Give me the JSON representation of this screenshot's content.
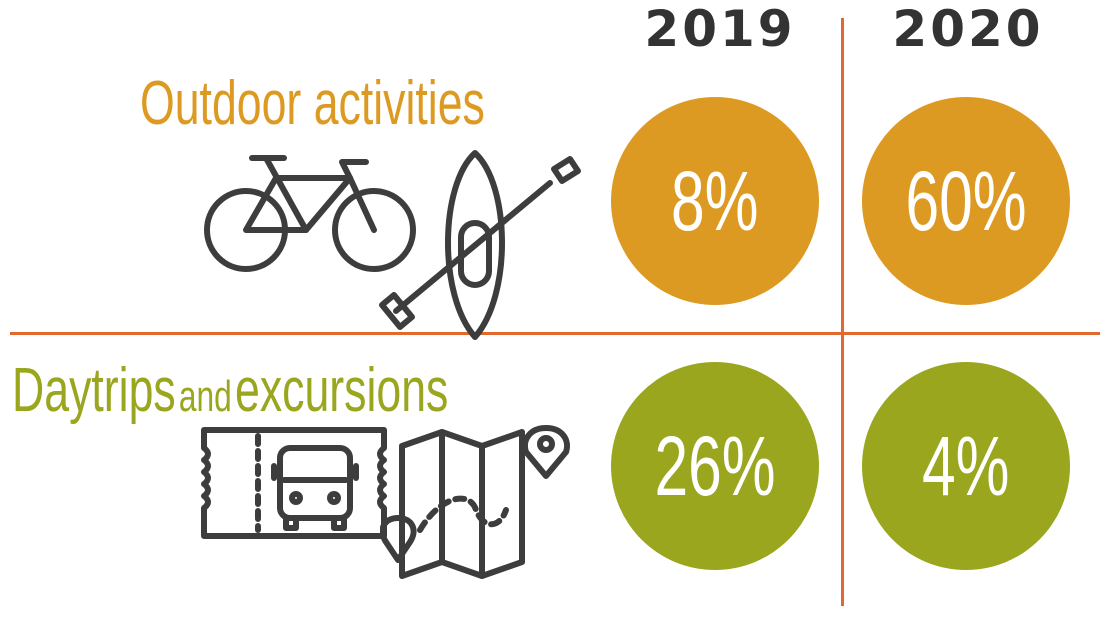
{
  "header": {
    "years": [
      "2019",
      "2020"
    ]
  },
  "categories": [
    {
      "label": "Outdoor activities",
      "icons": [
        "bicycle-icon",
        "kayak-icon"
      ],
      "values": [
        "8%",
        "60%"
      ],
      "color": "#dd9a22"
    },
    {
      "label_parts": [
        "Daytrips",
        "and",
        "excursions"
      ],
      "icons": [
        "bus-ticket-icon",
        "map-icon"
      ],
      "values": [
        "26%",
        "4%"
      ],
      "color": "#9aa61e"
    }
  ],
  "colors": {
    "divider": "#e06a2e",
    "year_text": "#333333",
    "icon_stroke": "#3d3d3d"
  }
}
